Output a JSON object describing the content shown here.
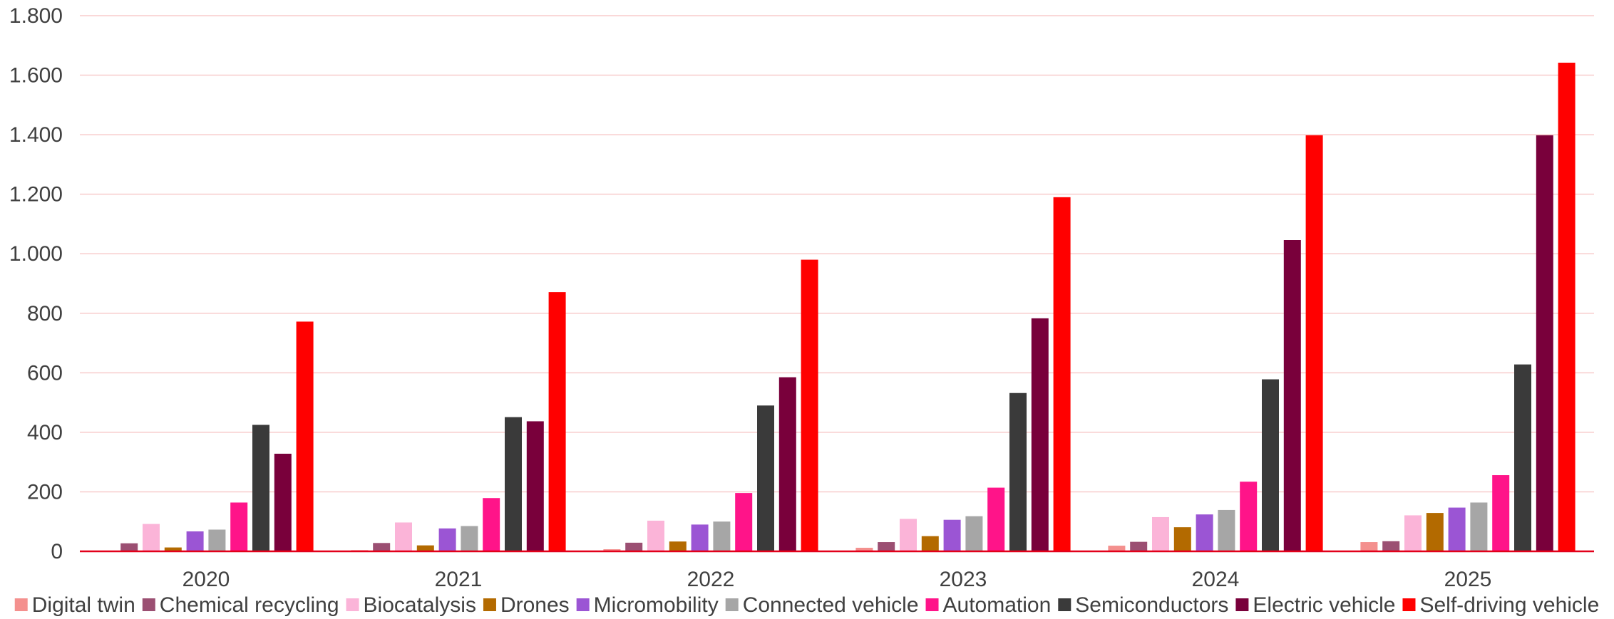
{
  "chart_data": {
    "type": "bar",
    "title": "",
    "xlabel": "",
    "ylabel": "",
    "ylim": [
      0,
      1800
    ],
    "yticks": [
      0,
      200,
      400,
      600,
      800,
      1000,
      1200,
      1400,
      1600,
      1800
    ],
    "ytick_labels": [
      "0",
      "200",
      "400",
      "600",
      "800",
      "1.000",
      "1.200",
      "1.400",
      "1.600",
      "1.800"
    ],
    "grid": true,
    "legend_position": "bottom",
    "categories": [
      "2020",
      "2021",
      "2022",
      "2023",
      "2024",
      "2025"
    ],
    "series": [
      {
        "name": "Digital twin",
        "color": "#F4908E",
        "values": [
          2,
          4,
          7,
          12,
          19,
          31
        ]
      },
      {
        "name": "Chemical recycling",
        "color": "#9B4F72",
        "values": [
          27,
          28,
          29,
          31,
          32,
          34
        ]
      },
      {
        "name": "Biocatalysis",
        "color": "#FBB4D8",
        "values": [
          92,
          97,
          103,
          109,
          115,
          121
        ]
      },
      {
        "name": "Drones",
        "color": "#B36A00",
        "values": [
          13,
          20,
          33,
          51,
          81,
          129
        ]
      },
      {
        "name": "Micromobility",
        "color": "#9B55D4",
        "values": [
          67,
          77,
          90,
          106,
          124,
          147
        ]
      },
      {
        "name": "Connected vehicle",
        "color": "#A6A6A6",
        "values": [
          73,
          85,
          100,
          118,
          139,
          164
        ]
      },
      {
        "name": "Automation",
        "color": "#FF1489",
        "values": [
          164,
          179,
          196,
          214,
          234,
          256
        ]
      },
      {
        "name": "Semiconductors",
        "color": "#3A3A3A",
        "values": [
          425,
          451,
          490,
          532,
          578,
          628
        ]
      },
      {
        "name": "Electric vehicle",
        "color": "#79003B",
        "values": [
          328,
          437,
          585,
          783,
          1046,
          1398
        ]
      },
      {
        "name": "Self-driving vehicle",
        "color": "#FF0000",
        "values": [
          772,
          871,
          980,
          1190,
          1398,
          1642
        ]
      }
    ]
  }
}
